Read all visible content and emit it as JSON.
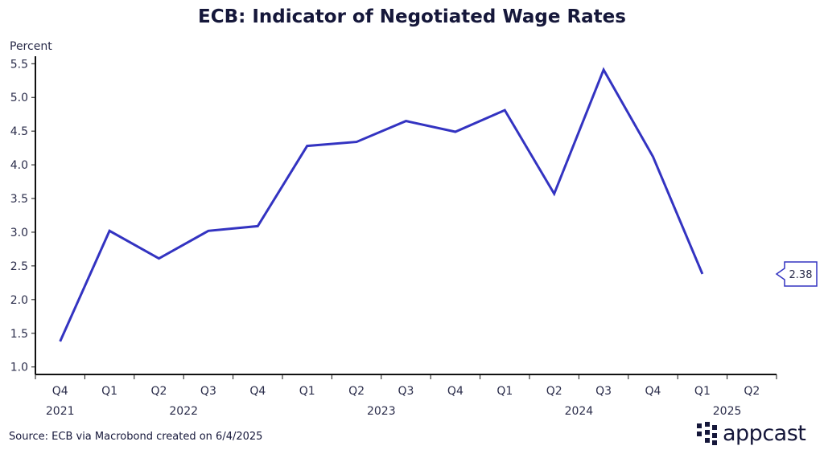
{
  "chart_data": {
    "type": "line",
    "title": "ECB: Indicator of Negotiated Wage Rates",
    "ylabel": "Percent",
    "xlabel": "",
    "ylim": [
      1.0,
      5.5
    ],
    "yticks": [
      "1.0",
      "1.5",
      "2.0",
      "2.5",
      "3.0",
      "3.5",
      "4.0",
      "4.5",
      "5.0",
      "5.5"
    ],
    "categories": [
      "Q4",
      "Q1",
      "Q2",
      "Q3",
      "Q4",
      "Q1",
      "Q2",
      "Q3",
      "Q4",
      "Q1",
      "Q2",
      "Q3",
      "Q4",
      "Q1",
      "Q2"
    ],
    "years": [
      {
        "label": "2021",
        "index": 0
      },
      {
        "label": "2022",
        "index": 2.5
      },
      {
        "label": "2023",
        "index": 6.5
      },
      {
        "label": "2024",
        "index": 10.5
      },
      {
        "label": "2025",
        "index": 13.5
      }
    ],
    "series": [
      {
        "name": "Negotiated wage rates",
        "color": "#3333c1",
        "values": [
          1.38,
          3.02,
          2.61,
          3.02,
          3.09,
          4.28,
          4.34,
          4.65,
          4.49,
          4.81,
          3.57,
          5.41,
          4.12,
          2.38,
          null
        ]
      }
    ],
    "last_value_label": "2.38",
    "grid": false
  },
  "footer": {
    "source": "Source: ECB via Macrobond created on 6/4/2025",
    "logo": "appcast"
  }
}
